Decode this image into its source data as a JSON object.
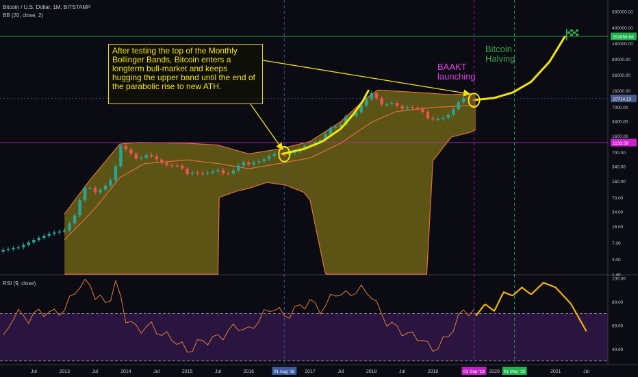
{
  "header": {
    "symbol_line": "Bitcoin / U.S. Dollar, 1M, BITSTAMP",
    "indicator_line": "BB (20, close, 2)",
    "rsi_line": "RSI (9, close)"
  },
  "annotations": {
    "note_text": "After testing the top of the Monthly Bollinger Bands, Bitcoin enters a longterm bull-market and keeps hugging the upper band until the end of the parabolic rise to new ATH.",
    "baakt": "BAAKT launching",
    "halving": "Bitcoin Halving"
  },
  "colors": {
    "background": "#0b0b14",
    "bb_fill": "#6b6214",
    "bb_line": "#e07040",
    "candle_up": "#26a69a",
    "candle_down": "#ef5350",
    "rsi_line": "#e87e30",
    "rsi_band": "#2a1540",
    "projection": "#f5e600",
    "baakt": "#e040e0",
    "halving": "#38a048",
    "highlight_price": "#1db34a",
    "magenta_level": "#cc22cc"
  },
  "chart_data": {
    "type": "candlestick",
    "scale": "log",
    "price_ticks": [
      "900000.00",
      "400000.00",
      "180000.00",
      "80000.00",
      "36000.00",
      "16000.00",
      "7000.00",
      "3400.00",
      "1600.00",
      "700.00",
      "340.00",
      "160.00",
      "70.00",
      "34.00",
      "16.00",
      "7.00",
      "3.00",
      "1.40"
    ],
    "price_tick_values": [
      900000,
      400000,
      180000,
      80000,
      36000,
      16000,
      7000,
      3400,
      1600,
      700,
      340,
      160,
      70,
      34,
      16,
      7,
      3,
      1.4
    ],
    "price_labels": [
      {
        "text": "252856.68",
        "value": 252856.68,
        "color": "#1db34a"
      },
      {
        "text": "10714.13",
        "value": 10714.13,
        "color": "#4a5a8a"
      },
      {
        "text": "1133.58",
        "value": 1133.58,
        "color": "#cc22cc"
      }
    ],
    "rsi_ticks": [
      "100.00",
      "80.00",
      "60.00",
      "40.00"
    ],
    "rsi_tick_values": [
      100,
      80,
      60,
      40
    ],
    "rsi_levels": [
      70,
      30
    ],
    "time_ticks": [
      {
        "label": "Jul",
        "year": 2012.5
      },
      {
        "label": "2013",
        "year": 2013.0
      },
      {
        "label": "Jul",
        "year": 2013.5
      },
      {
        "label": "2014",
        "year": 2014.0
      },
      {
        "label": "Jul",
        "year": 2014.5
      },
      {
        "label": "2015",
        "year": 2015.0
      },
      {
        "label": "Jul",
        "year": 2015.5
      },
      {
        "label": "2016",
        "year": 2016.0
      },
      {
        "label": "2017",
        "year": 2017.0
      },
      {
        "label": "Jul",
        "year": 2017.5
      },
      {
        "label": "2018",
        "year": 2018.0
      },
      {
        "label": "Jul",
        "year": 2018.5
      },
      {
        "label": "2019",
        "year": 2019.0
      },
      {
        "label": "2020",
        "year": 2020.0
      },
      {
        "label": "2021",
        "year": 2021.0
      },
      {
        "label": "Jul",
        "year": 2021.5
      }
    ],
    "time_markers": [
      {
        "label": "01 Aug '16",
        "year": 2016.58,
        "bg": "#3b5aa0"
      },
      {
        "label": "01 Sep '19",
        "year": 2019.67,
        "bg": "#c020c0"
      },
      {
        "label": "01 May '20",
        "year": 2020.33,
        "bg": "#1db34a"
      }
    ],
    "candle_seeds": [
      [
        2012.0,
        4.8
      ],
      [
        2012.25,
        5.5
      ],
      [
        2012.5,
        8
      ],
      [
        2012.75,
        11
      ],
      [
        2013.0,
        13
      ],
      [
        2013.1,
        20
      ],
      [
        2013.2,
        33
      ],
      [
        2013.3,
        110
      ],
      [
        2013.4,
        120
      ],
      [
        2013.5,
        90
      ],
      [
        2013.6,
        106
      ],
      [
        2013.7,
        140
      ],
      [
        2013.8,
        200
      ],
      [
        2013.9,
        1000
      ],
      [
        2014.0,
        800
      ],
      [
        2014.1,
        620
      ],
      [
        2014.2,
        450
      ],
      [
        2014.3,
        620
      ],
      [
        2014.4,
        580
      ],
      [
        2014.5,
        480
      ],
      [
        2014.6,
        390
      ],
      [
        2014.7,
        340
      ],
      [
        2014.8,
        370
      ],
      [
        2014.9,
        320
      ],
      [
        2015.0,
        230
      ],
      [
        2015.1,
        250
      ],
      [
        2015.2,
        230
      ],
      [
        2015.3,
        240
      ],
      [
        2015.4,
        260
      ],
      [
        2015.5,
        280
      ],
      [
        2015.6,
        230
      ],
      [
        2015.7,
        236
      ],
      [
        2015.8,
        320
      ],
      [
        2015.9,
        430
      ],
      [
        2016.0,
        370
      ],
      [
        2016.1,
        420
      ],
      [
        2016.2,
        450
      ],
      [
        2016.3,
        530
      ],
      [
        2016.4,
        650
      ],
      [
        2016.5,
        620
      ],
      [
        2016.6,
        600
      ],
      [
        2016.7,
        700
      ],
      [
        2016.8,
        740
      ],
      [
        2016.9,
        960
      ],
      [
        2017.0,
        970
      ],
      [
        2017.1,
        1180
      ],
      [
        2017.2,
        1350
      ],
      [
        2017.3,
        2300
      ],
      [
        2017.4,
        2500
      ],
      [
        2017.5,
        2800
      ],
      [
        2017.6,
        4700
      ],
      [
        2017.7,
        4300
      ],
      [
        2017.8,
        6400
      ],
      [
        2017.9,
        10000
      ],
      [
        2018.0,
        14000
      ],
      [
        2018.1,
        10300
      ],
      [
        2018.2,
        6900
      ],
      [
        2018.3,
        9200
      ],
      [
        2018.4,
        7500
      ],
      [
        2018.5,
        6400
      ],
      [
        2018.6,
        7000
      ],
      [
        2018.7,
        6600
      ],
      [
        2018.8,
        6300
      ],
      [
        2018.9,
        4000
      ],
      [
        2019.0,
        3700
      ],
      [
        2019.1,
        3800
      ],
      [
        2019.2,
        4100
      ],
      [
        2019.3,
        5300
      ],
      [
        2019.4,
        8500
      ],
      [
        2019.5,
        10800
      ],
      [
        2019.6,
        10000
      ],
      [
        2019.7,
        9600
      ]
    ],
    "bb_upper": [
      [
        2013.0,
        30
      ],
      [
        2013.4,
        160
      ],
      [
        2013.9,
        1050
      ],
      [
        2014.2,
        1150
      ],
      [
        2015.0,
        1100
      ],
      [
        2015.5,
        1000
      ],
      [
        2016.0,
        640
      ],
      [
        2016.5,
        820
      ],
      [
        2017.0,
        1200
      ],
      [
        2017.5,
        3300
      ],
      [
        2017.9,
        10500
      ],
      [
        2018.1,
        16500
      ],
      [
        2018.6,
        15000
      ],
      [
        2019.3,
        13000
      ],
      [
        2019.7,
        14000
      ]
    ],
    "bb_basis": [
      [
        2013.0,
        8
      ],
      [
        2013.5,
        40
      ],
      [
        2013.9,
        190
      ],
      [
        2014.3,
        390
      ],
      [
        2015.0,
        470
      ],
      [
        2015.5,
        390
      ],
      [
        2016.0,
        300
      ],
      [
        2016.5,
        390
      ],
      [
        2017.0,
        520
      ],
      [
        2017.5,
        1100
      ],
      [
        2018.0,
        3200
      ],
      [
        2018.4,
        5500
      ],
      [
        2019.0,
        6800
      ],
      [
        2019.7,
        7600
      ]
    ],
    "bb_lower": [
      [
        2013.0,
        1.4
      ],
      [
        2013.25,
        1.4
      ],
      [
        2014.0,
        1.4
      ],
      [
        2015.5,
        1.4
      ],
      [
        2015.52,
        70
      ],
      [
        2015.8,
        95
      ],
      [
        2016.0,
        110
      ],
      [
        2016.3,
        150
      ],
      [
        2016.6,
        130
      ],
      [
        2016.9,
        90
      ],
      [
        2017.0,
        60
      ],
      [
        2017.25,
        1.4
      ],
      [
        2018.3,
        1.4
      ],
      [
        2018.9,
        1.4
      ],
      [
        2019.0,
        450
      ],
      [
        2019.3,
        1500
      ],
      [
        2019.6,
        1900
      ],
      [
        2019.7,
        2200
      ]
    ],
    "projection_path": [
      [
        2016.55,
        640
      ],
      [
        2016.9,
        820
      ],
      [
        2017.2,
        1200
      ],
      [
        2017.5,
        2300
      ],
      [
        2017.7,
        4700
      ],
      [
        2017.85,
        9000
      ],
      [
        2017.95,
        16000
      ]
    ],
    "projection_future": [
      [
        2019.7,
        10000
      ],
      [
        2020.0,
        11000
      ],
      [
        2020.3,
        14500
      ],
      [
        2020.6,
        25000
      ],
      [
        2020.9,
        70000
      ],
      [
        2021.15,
        250000
      ]
    ],
    "rsi_seeds": [
      [
        2012.0,
        48
      ],
      [
        2012.2,
        72
      ],
      [
        2012.4,
        65
      ],
      [
        2012.6,
        72
      ],
      [
        2012.8,
        70
      ],
      [
        2013.0,
        73
      ],
      [
        2013.2,
        92
      ],
      [
        2013.4,
        97
      ],
      [
        2013.5,
        85
      ],
      [
        2013.7,
        78
      ],
      [
        2013.85,
        97
      ],
      [
        2014.0,
        66
      ],
      [
        2014.2,
        56
      ],
      [
        2014.4,
        60
      ],
      [
        2014.6,
        52
      ],
      [
        2014.8,
        48
      ],
      [
        2015.0,
        38
      ],
      [
        2015.2,
        46
      ],
      [
        2015.4,
        48
      ],
      [
        2015.6,
        52
      ],
      [
        2015.8,
        60
      ],
      [
        2016.0,
        55
      ],
      [
        2016.2,
        67
      ],
      [
        2016.4,
        76
      ],
      [
        2016.6,
        67
      ],
      [
        2016.8,
        75
      ],
      [
        2017.0,
        80
      ],
      [
        2017.2,
        72
      ],
      [
        2017.4,
        88
      ],
      [
        2017.6,
        85
      ],
      [
        2017.8,
        91
      ],
      [
        2018.0,
        86
      ],
      [
        2018.2,
        65
      ],
      [
        2018.4,
        58
      ],
      [
        2018.6,
        52
      ],
      [
        2018.8,
        50
      ],
      [
        2018.95,
        40
      ],
      [
        2019.1,
        42
      ],
      [
        2019.3,
        55
      ],
      [
        2019.5,
        73
      ],
      [
        2019.7,
        70
      ]
    ],
    "rsi_future": [
      [
        2019.7,
        68
      ],
      [
        2019.85,
        78
      ],
      [
        2020.0,
        72
      ],
      [
        2020.15,
        88
      ],
      [
        2020.3,
        85
      ],
      [
        2020.45,
        92
      ],
      [
        2020.6,
        86
      ],
      [
        2020.8,
        96
      ],
      [
        2021.0,
        92
      ],
      [
        2021.25,
        78
      ],
      [
        2021.5,
        55
      ]
    ]
  }
}
